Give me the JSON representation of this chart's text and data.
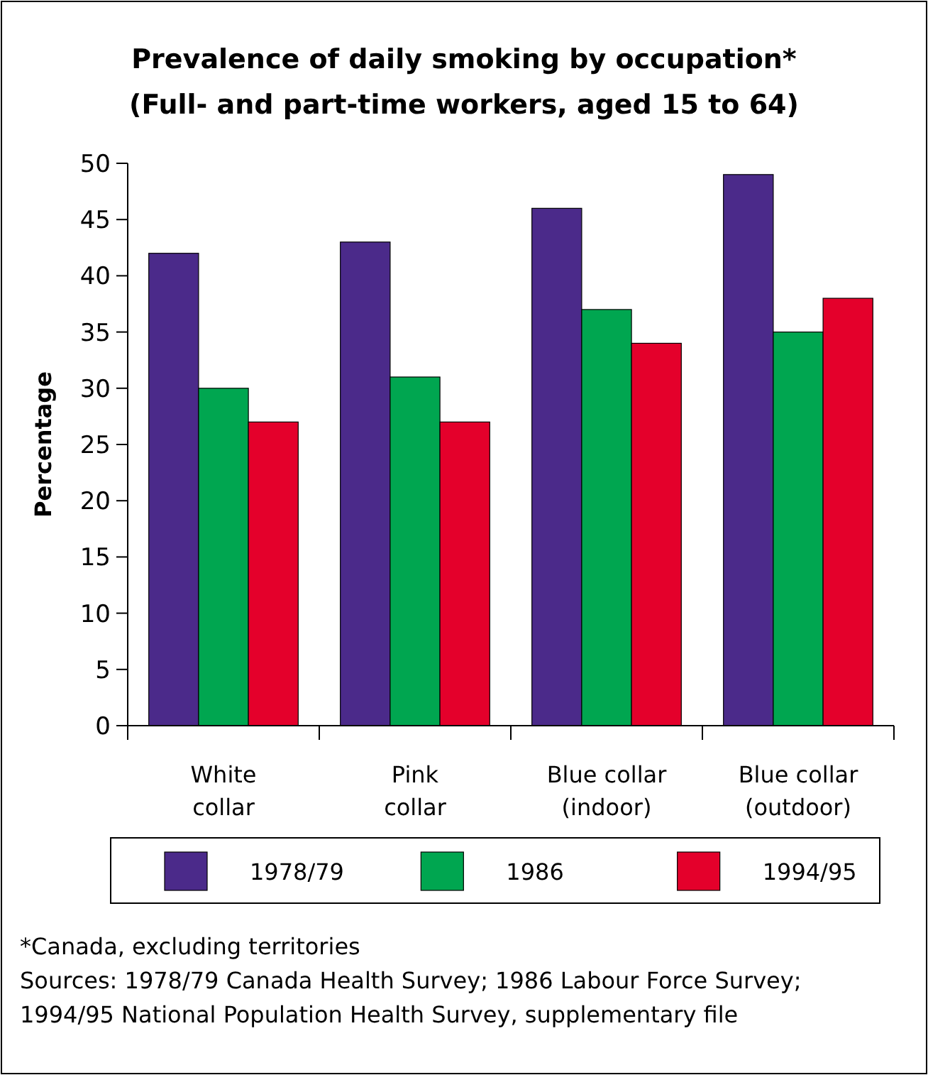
{
  "chart_data": {
    "type": "bar",
    "title": "Prevalence of daily smoking by occupation*",
    "subtitle": "(Full- and part-time workers, aged 15 to 64)",
    "ylabel": "Percentage",
    "categories": [
      "White\ncollar",
      "Pink\ncollar",
      "Blue collar\n(indoor)",
      "Blue collar\n(outdoor)"
    ],
    "series": [
      {
        "name": "1978/79",
        "color": "#4b2a8a",
        "values": [
          42,
          43,
          46,
          49
        ]
      },
      {
        "name": "1986",
        "color": "#00a650",
        "values": [
          30,
          31,
          37,
          35
        ]
      },
      {
        "name": "1994/95",
        "color": "#e4002b",
        "values": [
          27,
          27,
          34,
          38
        ]
      }
    ],
    "ylim": [
      0,
      50
    ],
    "yticks": [
      0,
      5,
      10,
      15,
      20,
      25,
      30,
      35,
      40,
      45,
      50
    ],
    "grid": false,
    "legend": "bottom",
    "annotations": [
      "*Canada, excluding territories",
      "Sources: 1978/79 Canada Health Survey; 1986 Labour Force Survey;",
      "1994/95 National Population Health Survey, supplementary file"
    ]
  }
}
